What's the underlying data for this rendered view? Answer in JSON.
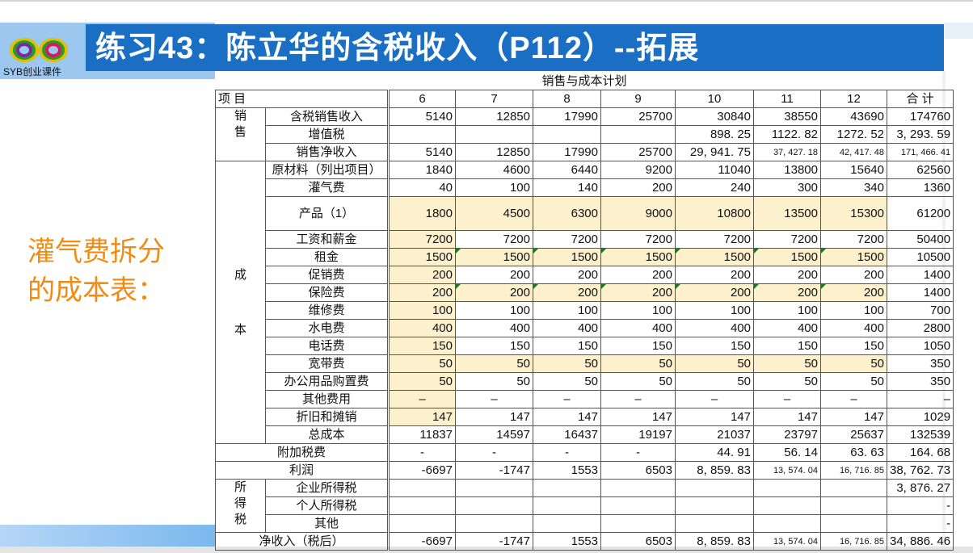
{
  "header": {
    "title": "练习43：陈立华的含税收入（P112）--拓展",
    "logo_text": "SYB创业课件"
  },
  "side_note": {
    "line1": "灌气费拆分",
    "line2": "的成本表："
  },
  "table": {
    "caption": "销售与成本计划",
    "header_item": "项  目",
    "columns": [
      "6",
      "7",
      "8",
      "9",
      "10",
      "11",
      "12",
      "合 计"
    ],
    "categories": {
      "sales": [
        "销",
        "售"
      ],
      "cost": [
        "成",
        "本"
      ],
      "income_tax": [
        "所",
        "得",
        "税"
      ]
    },
    "rows": [
      {
        "label": "含税销售收入",
        "values": [
          "5140",
          "12850",
          "17990",
          "25700",
          "30840",
          "38550",
          "43690",
          "174760"
        ]
      },
      {
        "label": "增值税",
        "values": [
          "",
          "",
          "",
          "",
          "898. 25",
          "1122. 82",
          "1272. 52",
          "3, 293. 59"
        ]
      },
      {
        "label": "销售净收入",
        "values": [
          "5140",
          "12850",
          "17990",
          "25700",
          "29, 941. 75",
          "37, 427. 18",
          "42, 417. 48",
          "171, 466. 41"
        ]
      },
      {
        "label": "原材料（列出项目）",
        "values": [
          "1840",
          "4600",
          "6440",
          "9200",
          "11040",
          "13800",
          "15640",
          "62560"
        ]
      },
      {
        "label": "灌气费",
        "values": [
          "40",
          "100",
          "140",
          "200",
          "240",
          "300",
          "340",
          "1360"
        ]
      },
      {
        "label": "产品（1）",
        "values": [
          "1800",
          "4500",
          "6300",
          "9000",
          "10800",
          "13500",
          "15300",
          "61200"
        ]
      },
      {
        "label": "工资和薪金",
        "values": [
          "7200",
          "7200",
          "7200",
          "7200",
          "7200",
          "7200",
          "7200",
          "50400"
        ]
      },
      {
        "label": "租金",
        "values": [
          "1500",
          "1500",
          "1500",
          "1500",
          "1500",
          "1500",
          "1500",
          "10500"
        ]
      },
      {
        "label": "促销费",
        "values": [
          "200",
          "200",
          "200",
          "200",
          "200",
          "200",
          "200",
          "1400"
        ]
      },
      {
        "label": "保险费",
        "values": [
          "200",
          "200",
          "200",
          "200",
          "200",
          "200",
          "200",
          "1400"
        ]
      },
      {
        "label": "维修费",
        "values": [
          "100",
          "100",
          "100",
          "100",
          "100",
          "100",
          "100",
          "700"
        ]
      },
      {
        "label": "水电费",
        "values": [
          "400",
          "400",
          "400",
          "400",
          "400",
          "400",
          "400",
          "2800"
        ]
      },
      {
        "label": "电话费",
        "values": [
          "150",
          "150",
          "150",
          "150",
          "150",
          "150",
          "150",
          "1050"
        ]
      },
      {
        "label": "宽带费",
        "values": [
          "50",
          "50",
          "50",
          "50",
          "50",
          "50",
          "50",
          "350"
        ]
      },
      {
        "label": "办公用品购置费",
        "values": [
          "50",
          "50",
          "50",
          "50",
          "50",
          "50",
          "50",
          "350"
        ]
      },
      {
        "label": "其他费用",
        "values": [
          "–",
          "–",
          "–",
          "–",
          "–",
          "–",
          "–",
          "–"
        ]
      },
      {
        "label": "折旧和摊销",
        "values": [
          "147",
          "147",
          "147",
          "147",
          "147",
          "147",
          "147",
          "1029"
        ]
      },
      {
        "label": "总成本",
        "values": [
          "11837",
          "14597",
          "16437",
          "19197",
          "21037",
          "23797",
          "25637",
          "132539"
        ]
      },
      {
        "label": "附加税费",
        "values": [
          "-",
          "-",
          "-",
          "-",
          "44. 91",
          "56. 14",
          "63. 63",
          "164. 68"
        ]
      },
      {
        "label": "利润",
        "values": [
          "-6697",
          "-1747",
          "1553",
          "6503",
          "8, 859. 83",
          "13, 574. 04",
          "16, 716. 85",
          "38, 762. 73"
        ]
      },
      {
        "label": "企业所得税",
        "values": [
          "",
          "",
          "",
          "",
          "",
          "",
          "",
          "3, 876. 27"
        ]
      },
      {
        "label": "个人所得税",
        "values": [
          "",
          "",
          "",
          "",
          "",
          "",
          "",
          "-"
        ]
      },
      {
        "label": "其他",
        "values": [
          "",
          "",
          "",
          "",
          "",
          "",
          "",
          "-"
        ]
      },
      {
        "label": "净收入（税后）",
        "values": [
          "-6697",
          "-1747",
          "1553",
          "6503",
          "8, 859. 83",
          "13, 574. 04",
          "16, 716. 85",
          "34, 886. 46"
        ]
      }
    ]
  }
}
